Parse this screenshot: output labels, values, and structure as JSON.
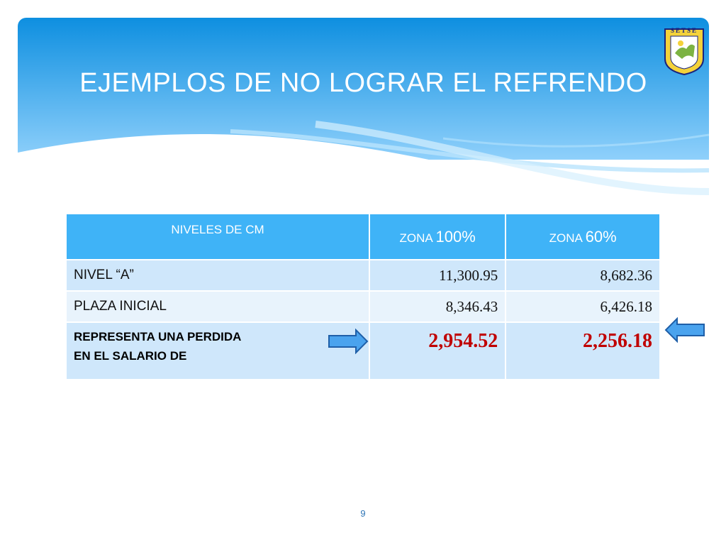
{
  "slide": {
    "title": "EJEMPLOS DE NO LOGRAR EL REFRENDO",
    "page_number": "9",
    "logo_text": "SETSE",
    "colors": {
      "header_blue": "#3fb3f7",
      "row_light": "#cfe7fb",
      "row_lighter": "#e8f3fc",
      "highlight_red": "#c00000"
    }
  },
  "table": {
    "headers": {
      "col1": "NIVELES DE CM",
      "col2_prefix": "ZONA ",
      "col2_pct": "100%",
      "col3_prefix": "ZONA ",
      "col3_pct": "60%"
    },
    "rows": [
      {
        "label": "NIVEL “A”",
        "zona100": "11,300.95",
        "zona60": "8,682.36"
      },
      {
        "label": "PLAZA INICIAL",
        "zona100": "8,346.43",
        "zona60": "6,426.18"
      }
    ],
    "loss_row": {
      "label_line1": "REPRESENTA UNA PERDIDA",
      "label_line2": "EN EL SALARIO DE",
      "zona100": "2,954.52",
      "zona60": "2,256.18"
    }
  },
  "icons": {
    "left_arrow": "arrow-right-icon",
    "right_arrow": "arrow-left-icon",
    "logo": "setse-shield-logo"
  }
}
